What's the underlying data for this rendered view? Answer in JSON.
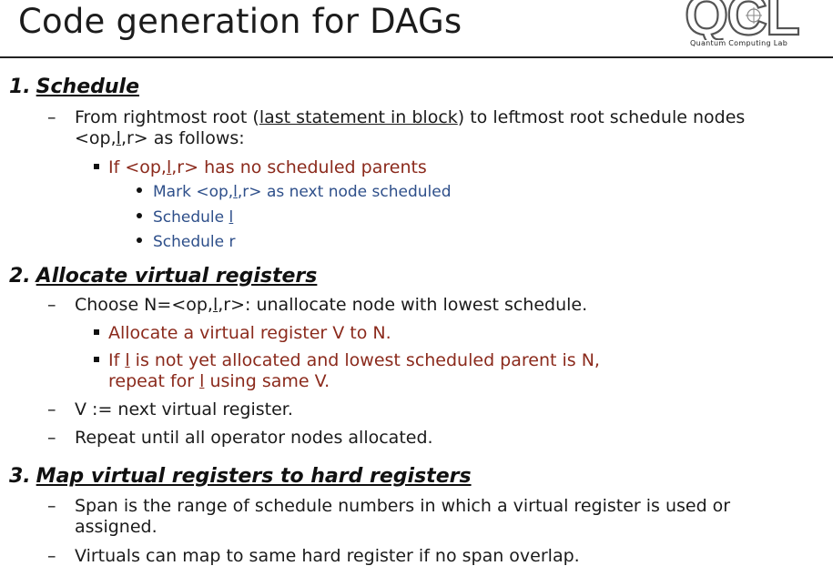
{
  "slide": {
    "title": "Code generation for DAGs"
  },
  "logo": {
    "letters": "QCL",
    "caption": "Quantum Computing Lab"
  },
  "sections": [
    {
      "number": "1.",
      "title": "Schedule",
      "line1_a": "From rightmost root (",
      "line1_link": "last statement in block",
      "line1_b": ") to leftmost root schedule nodes",
      "line1_c": "<op,",
      "line1_l": "l",
      "line1_d": ",r> as follows:",
      "sub_a": "If <op,",
      "sub_l": "l",
      "sub_b": ",r> has no scheduled parents",
      "subsub1_a": "Mark <op,",
      "subsub1_l": "l",
      "subsub1_b": ",r> as next node scheduled",
      "subsub2_a": "Schedule ",
      "subsub2_l": "l",
      "subsub3": "Schedule r"
    },
    {
      "number": "2.",
      "title": "Allocate virtual registers",
      "line1_a": "Choose N=<op,",
      "line1_l": "l",
      "line1_b": ",r>: unallocate node with lowest schedule.",
      "sub1": "Allocate a virtual register V to N.",
      "sub2_a": "If ",
      "sub2_l": "l",
      "sub2_b": " is not yet allocated and lowest scheduled parent is N,",
      "sub2_c": "repeat for ",
      "sub2_l2": "l",
      "sub2_d": " using same V.",
      "line2": "V := next virtual register.",
      "line3": "Repeat until all operator nodes allocated."
    },
    {
      "number": "3.",
      "title": "Map virtual registers to hard registers",
      "line1_a": "Span is the range of schedule numbers in which a virtual register is used or",
      "line1_b": "assigned.",
      "line2": "Virtuals can map to same hard register if no span overlap."
    }
  ],
  "glyphs": {
    "dash": "–"
  },
  "colors": {
    "level2": "#8b2a1c",
    "level3": "#2e4f8a",
    "text": "#1a1a1a"
  }
}
